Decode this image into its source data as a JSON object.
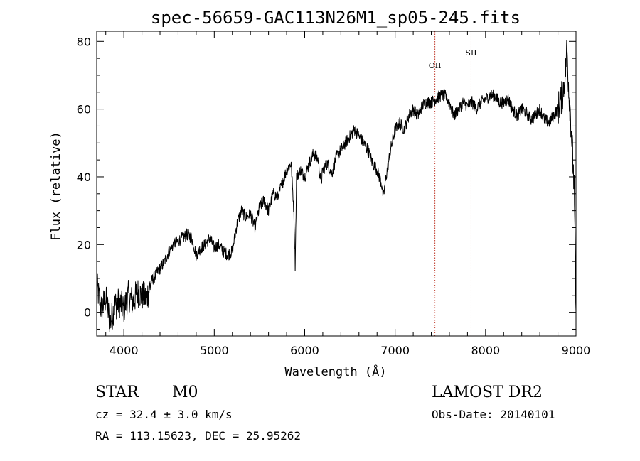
{
  "chart_data": {
    "type": "line",
    "title": "spec-56659-GAC113N26M1_sp05-245.fits",
    "xlabel": "Wavelength (Å)",
    "ylabel": "Flux (relative)",
    "xlim": [
      3700,
      9000
    ],
    "ylim": [
      -7,
      83
    ],
    "xticks": [
      4000,
      5000,
      6000,
      7000,
      8000,
      9000
    ],
    "yticks": [
      0,
      20,
      40,
      60,
      80
    ],
    "series": [
      {
        "x": [
          3700,
          3750,
          3800,
          3850,
          3900,
          3950,
          4000,
          4050,
          4100,
          4150,
          4200,
          4250,
          4300,
          4350,
          4400,
          4450,
          4500,
          4550,
          4600,
          4650,
          4700,
          4750,
          4800,
          4850,
          4900,
          4950,
          5000,
          5050,
          5100,
          5150,
          5200,
          5250,
          5300,
          5350,
          5400,
          5450,
          5500,
          5550,
          5600,
          5650,
          5700,
          5750,
          5800,
          5850,
          5880,
          5895,
          5910,
          5950,
          6000,
          6050,
          6100,
          6150,
          6180,
          6200,
          6250,
          6300,
          6350,
          6400,
          6450,
          6500,
          6550,
          6600,
          6650,
          6700,
          6750,
          6800,
          6850,
          6870,
          6900,
          6950,
          7000,
          7050,
          7100,
          7150,
          7200,
          7250,
          7300,
          7350,
          7400,
          7450,
          7500,
          7550,
          7600,
          7650,
          7700,
          7750,
          7800,
          7850,
          7900,
          7950,
          8000,
          8050,
          8100,
          8150,
          8200,
          8250,
          8300,
          8350,
          8400,
          8450,
          8500,
          8550,
          8600,
          8650,
          8700,
          8750,
          8800,
          8850,
          8880,
          8900,
          8920,
          8940,
          8960,
          8980,
          9000
        ],
        "y": [
          8,
          1,
          4,
          -3,
          2,
          3,
          1,
          5,
          3,
          6,
          5,
          4,
          9,
          11,
          13,
          15,
          18,
          20,
          21,
          22,
          23,
          22,
          17,
          19,
          20,
          22,
          19,
          20,
          18,
          17,
          18,
          26,
          30,
          28,
          29,
          25,
          31,
          33,
          30,
          35,
          34,
          38,
          42,
          44,
          30,
          14,
          40,
          42,
          40,
          44,
          47,
          45,
          38,
          42,
          44,
          41,
          46,
          48,
          50,
          52,
          54,
          52,
          50,
          48,
          44,
          42,
          38,
          34,
          40,
          48,
          54,
          56,
          54,
          58,
          60,
          58,
          61,
          62,
          62,
          63,
          64,
          64,
          62,
          58,
          60,
          62,
          61,
          62,
          60,
          62,
          63,
          64,
          64,
          62,
          62,
          63,
          60,
          58,
          60,
          59,
          57,
          58,
          60,
          57,
          56,
          58,
          60,
          64,
          70,
          78,
          66,
          58,
          48,
          36,
          0
        ]
      }
    ],
    "annotations": [
      {
        "label": "OII",
        "x": 7440
      },
      {
        "label": "SII",
        "x": 7840
      }
    ],
    "annotation_color": "#c0392b"
  },
  "info": {
    "object_class": "STAR",
    "subclass": "M0",
    "survey": "LAMOST DR2",
    "cz": "cz = 32.4 ± 3.0 km/s",
    "obs_date": "Obs-Date: 20140101",
    "coords": "RA = 113.15623, DEC =  25.95262"
  }
}
